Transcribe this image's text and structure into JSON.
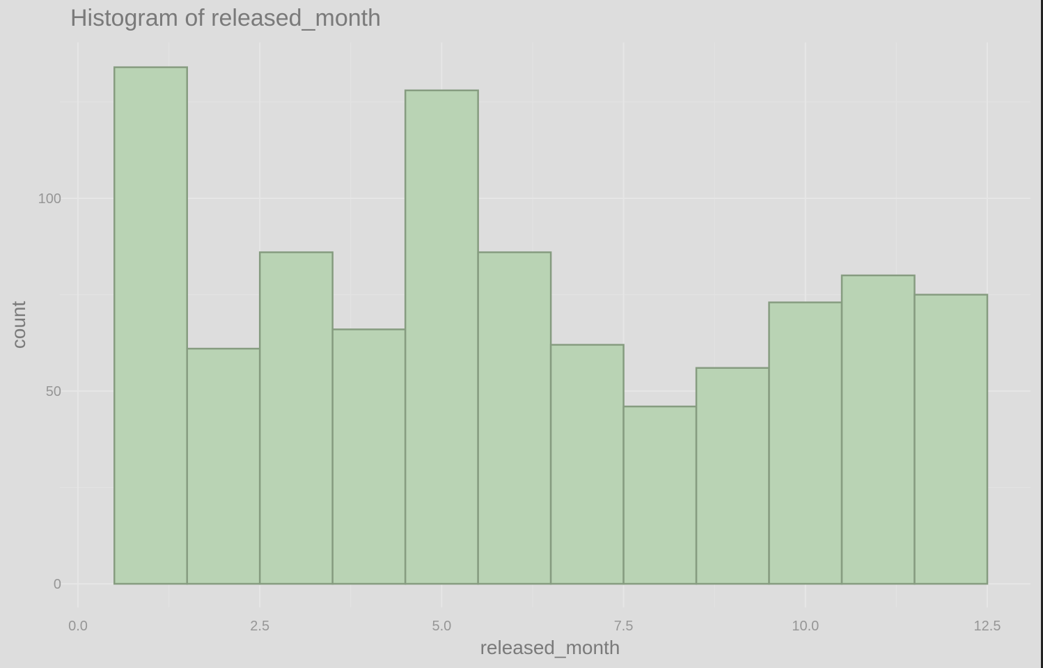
{
  "chart_data": {
    "type": "histogram",
    "title": "Histogram of released_month",
    "xlabel": "released_month",
    "ylabel": "count",
    "xlim": [
      0,
      13
    ],
    "ylim": [
      -6,
      140
    ],
    "x_ticks": [
      0.0,
      2.5,
      5.0,
      7.5,
      10.0,
      12.5
    ],
    "x_tick_labels": [
      "0.0",
      "2.5",
      "5.0",
      "7.5",
      "10.0",
      "12.5"
    ],
    "x_minor_ticks": [
      1.25,
      3.75,
      6.25,
      8.75,
      11.25
    ],
    "y_ticks": [
      0,
      50,
      100
    ],
    "y_tick_labels": [
      "0",
      "50",
      "100"
    ],
    "y_minor_ticks": [
      25,
      75,
      125
    ],
    "bins": [
      {
        "x0": 0.5,
        "x1": 1.5,
        "count": 134
      },
      {
        "x0": 1.5,
        "x1": 2.5,
        "count": 61
      },
      {
        "x0": 2.5,
        "x1": 3.5,
        "count": 86
      },
      {
        "x0": 3.5,
        "x1": 4.5,
        "count": 66
      },
      {
        "x0": 4.5,
        "x1": 5.5,
        "count": 128
      },
      {
        "x0": 5.5,
        "x1": 6.5,
        "count": 86
      },
      {
        "x0": 6.5,
        "x1": 7.5,
        "count": 62
      },
      {
        "x0": 7.5,
        "x1": 8.5,
        "count": 46
      },
      {
        "x0": 8.5,
        "x1": 9.5,
        "count": 56
      },
      {
        "x0": 9.5,
        "x1": 10.5,
        "count": 73
      },
      {
        "x0": 10.5,
        "x1": 11.5,
        "count": 80
      },
      {
        "x0": 11.5,
        "x1": 12.5,
        "count": 75
      }
    ],
    "grid": true,
    "legend": "none",
    "colors": {
      "background": "#dddddd",
      "bar_fill": "#b9d3b4",
      "bar_stroke": "#869c80"
    }
  }
}
